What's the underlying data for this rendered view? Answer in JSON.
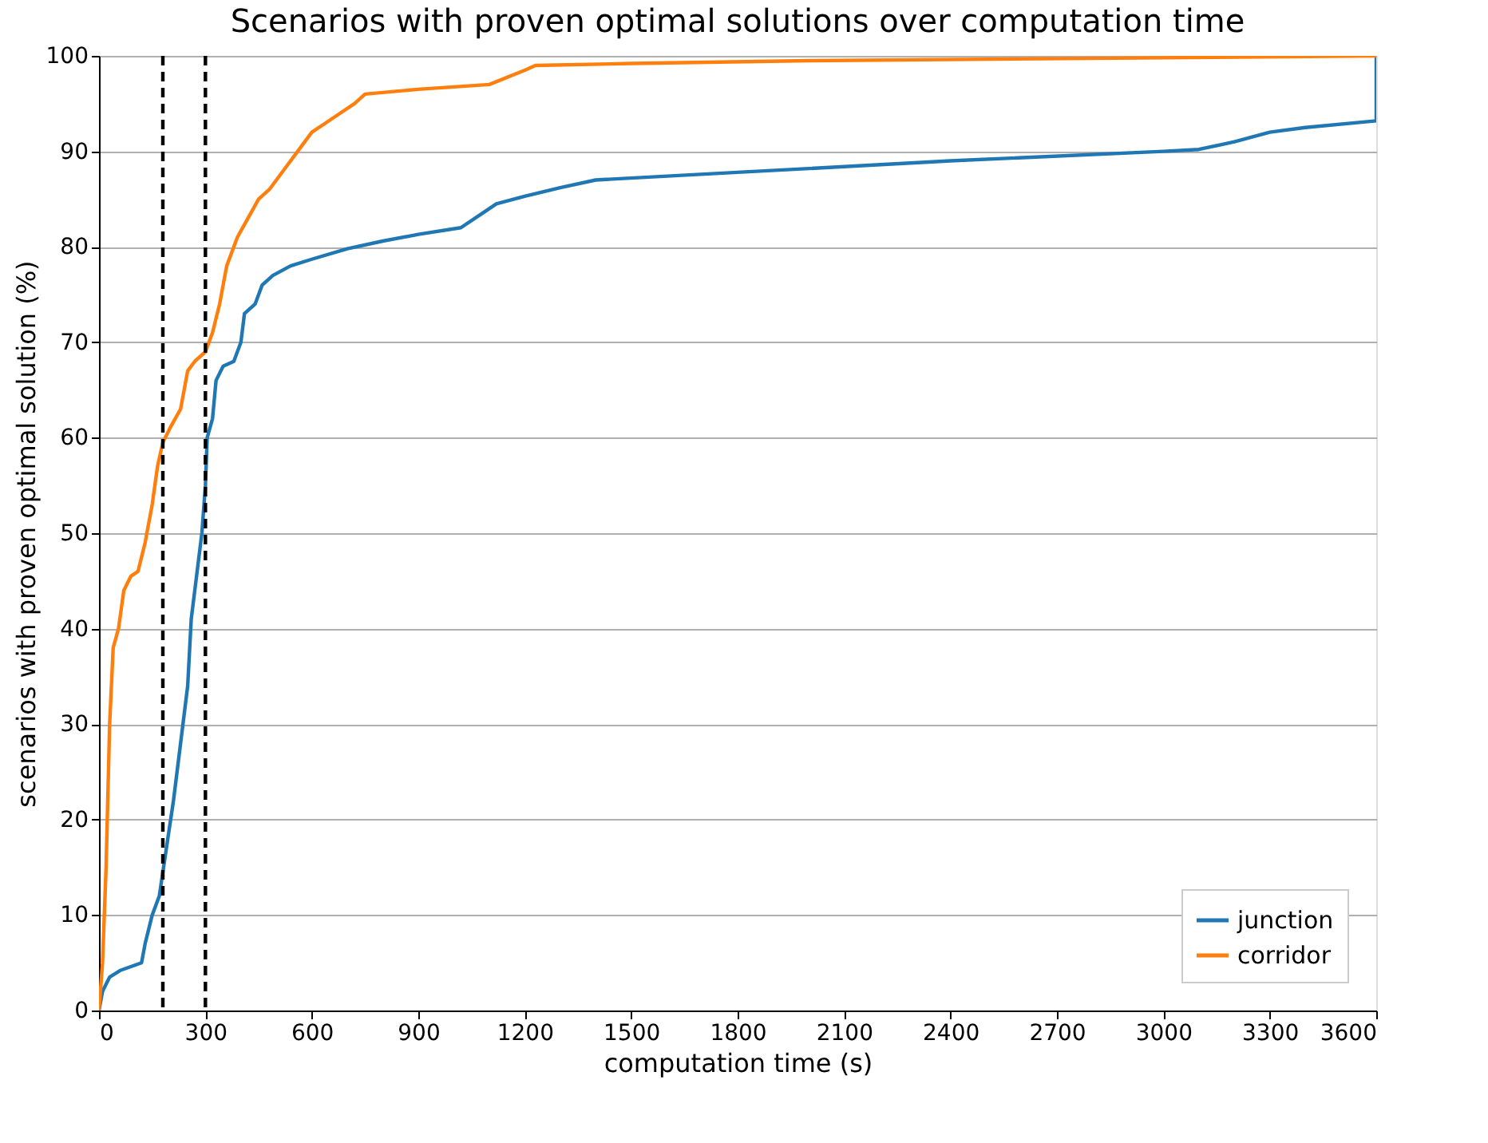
{
  "chart_data": {
    "type": "line",
    "title": "Scenarios with proven optimal solutions over computation time",
    "xlabel": "computation time (s)",
    "ylabel": "scenarios with proven optimal solution (%)",
    "xlim": [
      0,
      3600
    ],
    "xticks": [
      0,
      300,
      600,
      900,
      1200,
      1500,
      1800,
      2100,
      2400,
      2700,
      3000,
      3300,
      3600
    ],
    "ylim": [
      0,
      100
    ],
    "yticks": [
      0,
      10,
      20,
      30,
      40,
      50,
      60,
      70,
      80,
      90,
      100
    ],
    "grid": "y",
    "legend": "bottom right",
    "line_style": "solid",
    "marker": "none",
    "series": [
      {
        "name": "junction",
        "color": "#1f77b4",
        "x": [
          0,
          10,
          30,
          60,
          120,
          130,
          150,
          170,
          190,
          210,
          230,
          250,
          260,
          270,
          280,
          290,
          300,
          305,
          320,
          330,
          350,
          380,
          400,
          410,
          440,
          460,
          490,
          540,
          600,
          700,
          800,
          900,
          1020,
          1080,
          1120,
          1200,
          1300,
          1400,
          1800,
          2400,
          3000,
          3100,
          3200,
          3300,
          3400,
          3600,
          3600
        ],
        "values": [
          0,
          2,
          3.5,
          4.2,
          5,
          7,
          10,
          12,
          17,
          22,
          28,
          34,
          41,
          44,
          47,
          50,
          55,
          60,
          62,
          66,
          67.5,
          68,
          70,
          73,
          74,
          76,
          77,
          78,
          78.7,
          79.8,
          80.6,
          81.3,
          82,
          83.5,
          84.5,
          85.3,
          86.2,
          87,
          87.8,
          89,
          90,
          90.2,
          91,
          92,
          92.5,
          93.2,
          100
        ]
      },
      {
        "name": "corridor",
        "color": "#ff7f0e",
        "x": [
          0,
          10,
          20,
          30,
          40,
          55,
          70,
          90,
          110,
          130,
          150,
          165,
          180,
          200,
          230,
          250,
          270,
          300,
          320,
          340,
          360,
          390,
          420,
          450,
          480,
          520,
          560,
          600,
          640,
          680,
          720,
          750,
          900,
          1100,
          1200,
          1230,
          1500,
          2000,
          3000,
          3600
        ],
        "values": [
          0,
          5,
          15,
          30,
          38,
          40,
          44,
          45.5,
          46,
          49,
          53,
          57,
          59.5,
          61,
          63,
          67,
          68,
          69,
          71,
          74,
          78,
          81,
          83,
          85,
          86,
          88,
          90,
          92,
          93,
          94,
          95,
          96,
          96.5,
          97,
          98.5,
          99,
          99.2,
          99.5,
          99.8,
          100
        ]
      }
    ],
    "ref_lines": [
      {
        "axis": "x",
        "value": 180,
        "color": "#000000",
        "line_style": "dashed"
      },
      {
        "axis": "x",
        "value": 300,
        "color": "#000000",
        "line_style": "dashed"
      }
    ]
  }
}
